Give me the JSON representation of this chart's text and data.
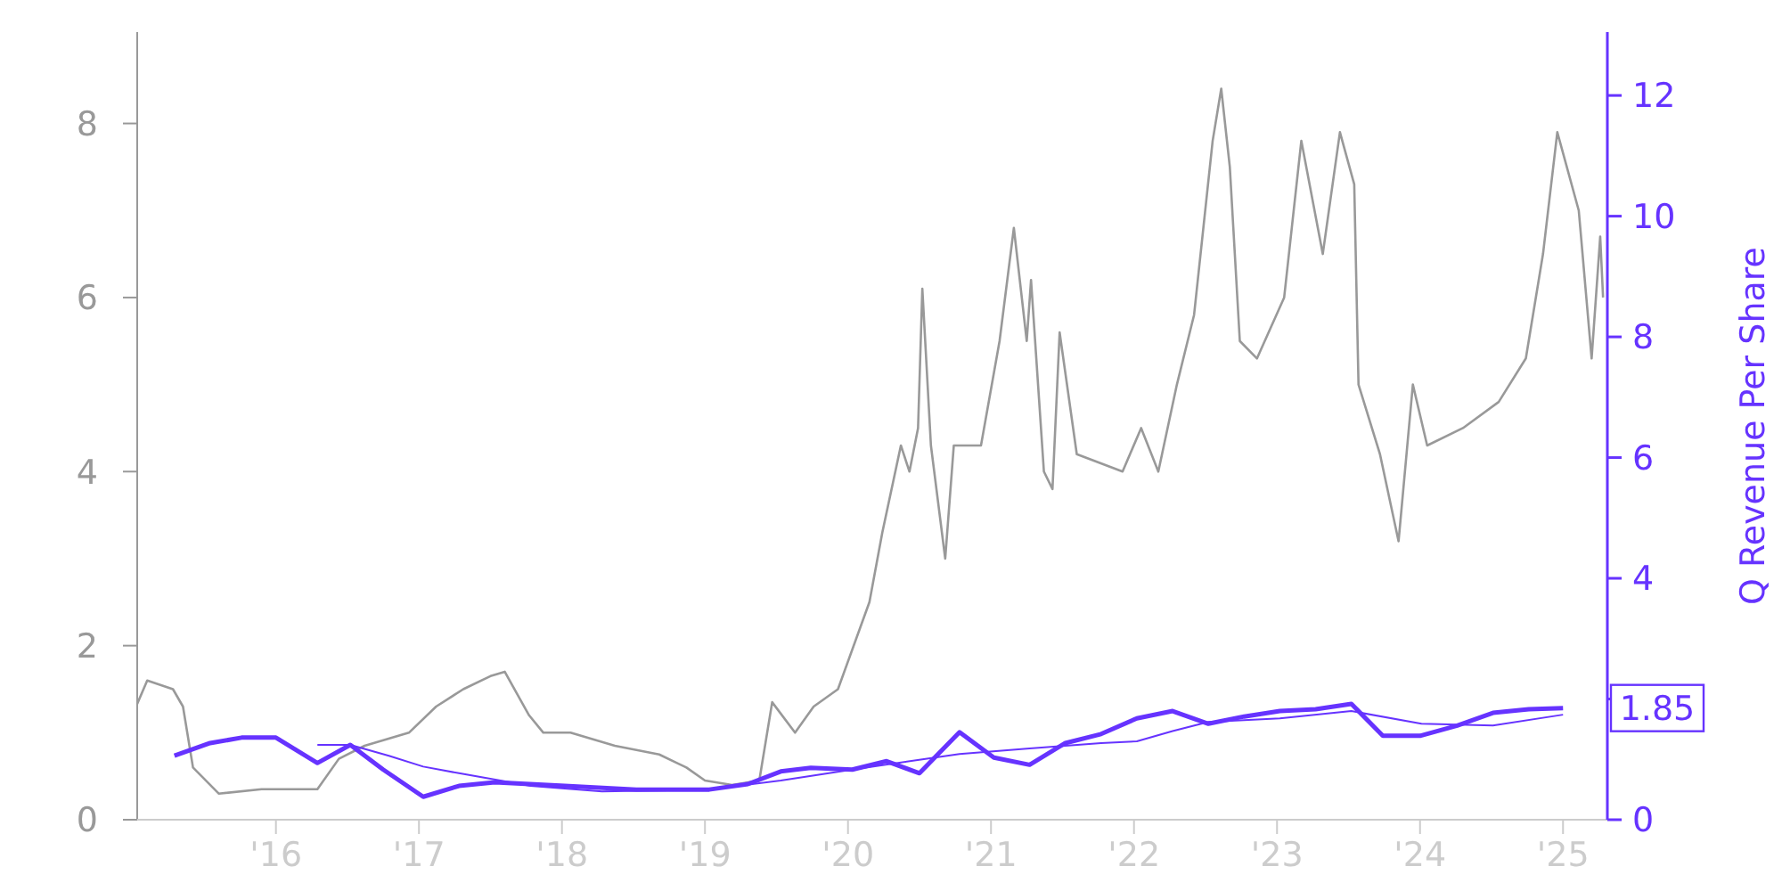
{
  "chart_data": {
    "type": "line",
    "y2label": "Q Revenue Per Share",
    "xlim": [
      2015.03,
      2025.31
    ],
    "ylim": [
      0,
      9.05
    ],
    "y2lim": [
      0,
      13.05
    ],
    "xticks": [
      {
        "value": 2016,
        "label": "'16"
      },
      {
        "value": 2017,
        "label": "'17"
      },
      {
        "value": 2018,
        "label": "'18"
      },
      {
        "value": 2019,
        "label": "'19"
      },
      {
        "value": 2020,
        "label": "'20"
      },
      {
        "value": 2021,
        "label": "'21"
      },
      {
        "value": 2022,
        "label": "'22"
      },
      {
        "value": 2023,
        "label": "'23"
      },
      {
        "value": 2024,
        "label": "'24"
      },
      {
        "value": 2025,
        "label": "'25"
      }
    ],
    "yticks": [
      0,
      2,
      4,
      6,
      8
    ],
    "y2ticks": [
      0,
      {
        "value": 2,
        "label": null
      },
      4,
      6,
      8,
      10,
      12
    ],
    "grid": false,
    "marker": "none",
    "line_style": "solid",
    "series": [
      {
        "color": "#999999",
        "x": [
          2015.03,
          2015.1,
          2015.28,
          2015.35,
          2015.42,
          2015.6,
          2015.9,
          2016.29,
          2016.44,
          2016.62,
          2016.93,
          2017.12,
          2017.31,
          2017.5,
          2017.6,
          2017.77,
          2017.87,
          2018.06,
          2018.37,
          2018.68,
          2018.87,
          2019.0,
          2019.19,
          2019.38,
          2019.47,
          2019.63,
          2019.76,
          2019.93,
          2020.15,
          2020.24,
          2020.37,
          2020.43,
          2020.49,
          2020.52,
          2020.58,
          2020.68,
          2020.74,
          2020.93,
          2021.06,
          2021.16,
          2021.25,
          2021.28,
          2021.37,
          2021.43,
          2021.48,
          2021.6,
          2021.92,
          2022.05,
          2022.17,
          2022.3,
          2022.42,
          2022.55,
          2022.61,
          2022.67,
          2022.74,
          2022.86,
          2023.05,
          2023.17,
          2023.32,
          2023.44,
          2023.54,
          2023.57,
          2023.72,
          2023.85,
          2023.95,
          2024.05,
          2024.3,
          2024.55,
          2024.74,
          2024.86,
          2024.96,
          2025.11,
          2025.2,
          2025.26,
          2025.28
        ],
        "values": [
          1.33,
          1.6,
          1.5,
          1.3,
          0.6,
          0.3,
          0.35,
          0.35,
          0.7,
          0.85,
          1.0,
          1.3,
          1.5,
          1.65,
          1.7,
          1.2,
          1.0,
          1.0,
          0.85,
          0.75,
          0.6,
          0.45,
          0.4,
          0.45,
          1.35,
          1.0,
          1.3,
          1.5,
          2.5,
          3.3,
          4.3,
          4.0,
          4.5,
          6.1,
          4.3,
          3.0,
          4.3,
          4.3,
          5.5,
          6.8,
          5.5,
          6.2,
          4.0,
          3.8,
          5.6,
          4.2,
          4.0,
          4.5,
          4.0,
          5.0,
          5.8,
          7.8,
          8.4,
          7.5,
          5.5,
          5.3,
          6.0,
          7.8,
          6.5,
          7.9,
          7.3,
          5.0,
          4.2,
          3.2,
          5.0,
          4.3,
          4.5,
          4.8,
          5.3,
          6.5,
          7.9,
          7.0,
          5.3,
          6.7,
          6.0
        ]
      },
      {
        "color": "#6633ff",
        "axis": "y2",
        "x": [
          2015.29,
          2015.54,
          2015.76,
          2016.0,
          2016.29,
          2016.52,
          2016.75,
          2017.03,
          2017.28,
          2017.53,
          2018.02,
          2018.52,
          2018.77,
          2019.03,
          2019.3,
          2019.53,
          2019.74,
          2020.03,
          2020.27,
          2020.5,
          2020.78,
          2021.02,
          2021.27,
          2021.52,
          2021.77,
          2022.02,
          2022.27,
          2022.52,
          2022.77,
          2023.02,
          2023.27,
          2023.52,
          2023.74,
          2024.0,
          2024.26,
          2024.51,
          2024.76,
          2025.0
        ],
        "values": [
          1.06,
          1.27,
          1.36,
          1.36,
          0.94,
          1.24,
          0.83,
          0.38,
          0.56,
          0.62,
          0.56,
          0.5,
          0.5,
          0.5,
          0.59,
          0.8,
          0.86,
          0.83,
          0.97,
          0.77,
          1.45,
          1.03,
          0.91,
          1.27,
          1.42,
          1.68,
          1.8,
          1.59,
          1.71,
          1.8,
          1.83,
          1.92,
          1.39,
          1.39,
          1.56,
          1.77,
          1.83,
          1.85
        ]
      },
      {
        "color": "#6633ff",
        "axis": "y2",
        "x": [
          2016.29,
          2016.52,
          2016.79,
          2017.03,
          2017.28,
          2017.78,
          2018.28,
          2019.03,
          2019.53,
          2020.03,
          2020.52,
          2020.78,
          2021.27,
          2021.77,
          2022.02,
          2022.27,
          2022.52,
          2023.02,
          2023.52,
          2024.01,
          2024.51,
          2025.0
        ],
        "values": [
          1.24,
          1.24,
          1.06,
          0.88,
          0.77,
          0.56,
          0.47,
          0.5,
          0.65,
          0.83,
          1.0,
          1.09,
          1.18,
          1.27,
          1.3,
          1.47,
          1.62,
          1.68,
          1.8,
          1.59,
          1.56,
          1.74
        ]
      }
    ],
    "annotations": [
      "1.85"
    ]
  }
}
